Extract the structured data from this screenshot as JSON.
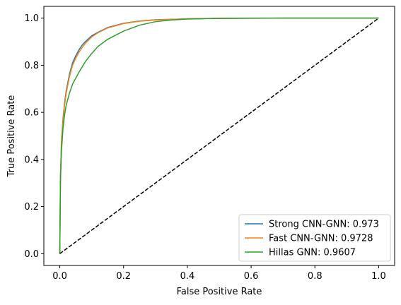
{
  "chart_data": {
    "type": "line",
    "title": "",
    "xlabel": "False Positive Rate",
    "ylabel": "True Positive Rate",
    "xlim": [
      -0.05,
      1.05
    ],
    "ylim": [
      -0.05,
      1.05
    ],
    "xticks": [
      0.0,
      0.2,
      0.4,
      0.6,
      0.8,
      1.0
    ],
    "yticks": [
      0.0,
      0.2,
      0.4,
      0.6,
      0.8,
      1.0
    ],
    "xtick_labels": [
      "0.0",
      "0.2",
      "0.4",
      "0.6",
      "0.8",
      "1.0"
    ],
    "ytick_labels": [
      "0.0",
      "0.2",
      "0.4",
      "0.6",
      "0.8",
      "1.0"
    ],
    "grid": false,
    "legend_position": "bottom-right",
    "series": [
      {
        "name": "Strong CNN-GNN: 0.973",
        "color": "#1f77b4",
        "x": [
          0.0,
          0.002,
          0.005,
          0.01,
          0.015,
          0.02,
          0.03,
          0.04,
          0.05,
          0.06,
          0.07,
          0.08,
          0.1,
          0.12,
          0.15,
          0.2,
          0.25,
          0.3,
          0.4,
          0.5,
          0.7,
          1.0
        ],
        "y": [
          0.0,
          0.33,
          0.47,
          0.57,
          0.64,
          0.69,
          0.76,
          0.81,
          0.84,
          0.865,
          0.885,
          0.9,
          0.925,
          0.94,
          0.96,
          0.978,
          0.988,
          0.993,
          0.997,
          0.999,
          1.0,
          1.0
        ]
      },
      {
        "name": "Fast CNN-GNN: 0.9728",
        "color": "#ff7f0e",
        "x": [
          0.0,
          0.002,
          0.005,
          0.01,
          0.015,
          0.02,
          0.03,
          0.04,
          0.05,
          0.06,
          0.07,
          0.08,
          0.1,
          0.12,
          0.15,
          0.2,
          0.25,
          0.3,
          0.4,
          0.5,
          0.7,
          1.0
        ],
        "y": [
          0.0,
          0.32,
          0.46,
          0.56,
          0.63,
          0.68,
          0.75,
          0.8,
          0.83,
          0.855,
          0.875,
          0.893,
          0.92,
          0.938,
          0.958,
          0.977,
          0.987,
          0.992,
          0.997,
          0.999,
          1.0,
          1.0
        ]
      },
      {
        "name": "Hillas GNN: 0.9607",
        "color": "#2ca02c",
        "x": [
          0.0,
          0.002,
          0.005,
          0.01,
          0.015,
          0.02,
          0.03,
          0.04,
          0.05,
          0.06,
          0.08,
          0.1,
          0.12,
          0.15,
          0.2,
          0.25,
          0.3,
          0.35,
          0.4,
          0.5,
          0.6,
          0.8,
          1.0
        ],
        "y": [
          0.0,
          0.3,
          0.43,
          0.53,
          0.59,
          0.63,
          0.68,
          0.72,
          0.745,
          0.77,
          0.815,
          0.85,
          0.88,
          0.91,
          0.945,
          0.97,
          0.985,
          0.992,
          0.996,
          0.999,
          1.0,
          1.0,
          1.0
        ]
      }
    ],
    "reference_line": {
      "x": [
        0.0,
        1.0
      ],
      "y": [
        0.0,
        1.0
      ],
      "color": "#000000",
      "style": "dashed"
    }
  }
}
